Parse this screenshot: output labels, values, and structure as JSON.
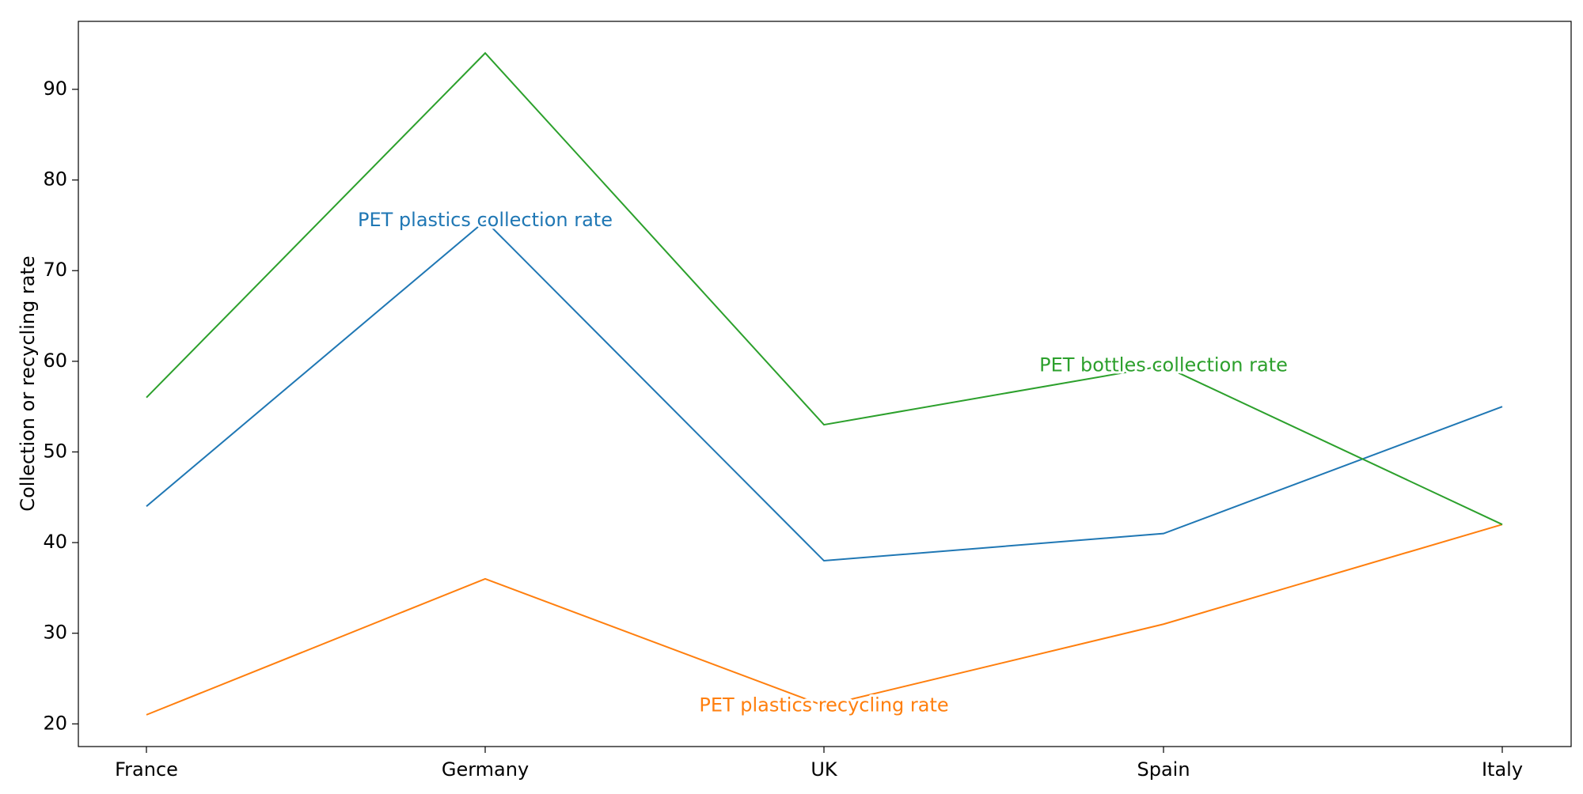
{
  "chart_data": {
    "type": "line",
    "title": "",
    "xlabel": "",
    "ylabel": "Collection or recycling rate",
    "categories": [
      "France",
      "Germany",
      "UK",
      "Spain",
      "Italy"
    ],
    "ylim": [
      17.5,
      97.5
    ],
    "yticks": [
      20,
      30,
      40,
      50,
      60,
      70,
      80,
      90
    ],
    "grid": false,
    "legend": "none",
    "series": [
      {
        "name": "PET plastics collection rate",
        "color": "#1f77b4",
        "values": [
          44,
          75.5,
          38,
          41,
          55
        ],
        "label_at": "Germany"
      },
      {
        "name": "PET plastics recycling rate",
        "color": "#ff7f0e",
        "values": [
          21,
          36,
          22,
          31,
          42
        ],
        "label_at": "UK"
      },
      {
        "name": "PET bottles collection rate",
        "color": "#2ca02c",
        "values": [
          56,
          94,
          53,
          59.5,
          42
        ],
        "label_at": "Spain"
      }
    ]
  }
}
